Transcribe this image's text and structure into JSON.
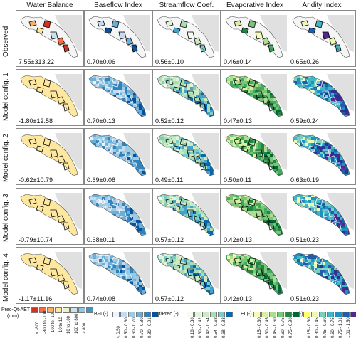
{
  "columns": [
    "Water Balance",
    "Baseflow Index",
    "Streamflow Coef.",
    "Evaporative Index",
    "Aridity Index"
  ],
  "rows": [
    "Observed",
    "Model config. 1",
    "Model config. 2",
    "Model config. 3",
    "Model config. 4"
  ],
  "stats": [
    [
      "7.55±313.22",
      "0.70±0.06",
      "0.56±0.10",
      "0.46±0.14",
      "0.65±0.26"
    ],
    [
      "-1.80±12.58",
      "0.70±0.13",
      "0.52±0.12",
      "0.47±0.13",
      "0.59±0.24"
    ],
    [
      "-0.62±10.79",
      "0.69±0.08",
      "0.49±0.11",
      "0.50±0.11",
      "0.63±0.19"
    ],
    [
      "-0.79±10.74",
      "0.68±0.11",
      "0.57±0.12",
      "0.42±0.13",
      "0.51±0.23"
    ],
    [
      "-1.17±11.16",
      "0.74±0.08",
      "0.57±0.12",
      "0.42±0.13",
      "0.51±0.23"
    ]
  ],
  "colors": {
    "wb": [
      "#d7301f",
      "#f46d43",
      "#fdae61",
      "#fee8a0",
      "#e8f5c8",
      "#c6e4f0",
      "#92c5de",
      "#4393c3"
    ],
    "bfi": [
      "#eff3ff",
      "#c6dbef",
      "#9ecae1",
      "#6baed6",
      "#3182bd",
      "#08519c"
    ],
    "sc": [
      "#f7fcf0",
      "#e0f3db",
      "#ccebc5",
      "#a8ddb5",
      "#7bccc4",
      "#43a2ca",
      "#0868ac"
    ],
    "ei": [
      "#f7fcb9",
      "#d9f0a3",
      "#addd8e",
      "#78c679",
      "#41ab5d",
      "#238443",
      "#006837"
    ],
    "ai": [
      "#ffff66",
      "#edf8b1",
      "#7fcdbb",
      "#41b6c4",
      "#1d91c0",
      "#225ea8",
      "#253494",
      "#54278f"
    ],
    "landmass": "#e0e0e0",
    "outline": "#000000"
  },
  "legends": {
    "wb": {
      "title": "Prec-Qt-AET",
      "unit": "(mm)",
      "ticks": [
        "< -800",
        "-800 to -100",
        "-100 to -10",
        "-10 to 10",
        "10 to 100",
        "100 to 800",
        "> 800"
      ]
    },
    "bfi": {
      "title": "BFI (-)",
      "ticks": [
        "< 0.50",
        "0.50 - 0.60",
        "0.60 - 0.70",
        "0.70 - 0.80",
        "0.80 - 0.91"
      ]
    },
    "sc": {
      "title": "Qt/Prec (-)",
      "ticks": [
        "0.18 - 0.30",
        "0.30 - 0.42",
        "0.42 - 0.54",
        "0.54 - 0.68",
        "0.68 - 0.83"
      ]
    },
    "ei": {
      "title": "EI (-)",
      "ticks": [
        "0.15 - 0.30",
        "0.30 - 0.45",
        "0.45 - 0.60",
        "0.60 - 0.75",
        "0.75 - 0.90"
      ]
    },
    "ai": {
      "title": "AI (-)",
      "ticks": [
        "0.15 - 0.30",
        "0.30 - 0.45",
        "0.45 - 0.60",
        "0.60 - 0.75",
        "0.75 - 1.01",
        "1.01 - 1.50"
      ]
    }
  }
}
